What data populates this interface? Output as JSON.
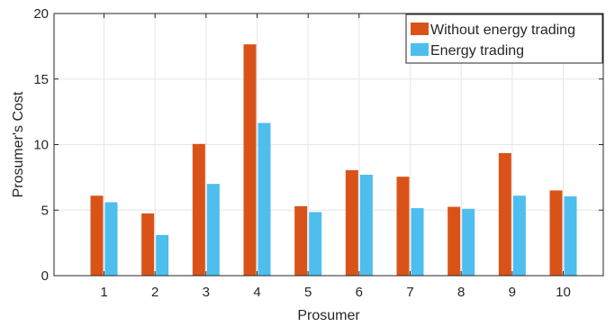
{
  "chart_data": {
    "type": "bar",
    "title": "",
    "xlabel": "Prosumer",
    "ylabel": "Prosumer's Cost",
    "categories": [
      "1",
      "2",
      "3",
      "4",
      "5",
      "6",
      "7",
      "8",
      "9",
      "10"
    ],
    "ylim": [
      0,
      20
    ],
    "yticks": [
      0,
      5,
      10,
      15,
      20
    ],
    "grid": true,
    "legend_position": "top-right",
    "series": [
      {
        "name": "Without energy trading",
        "color": "#D95319",
        "values": [
          6.1,
          4.75,
          10.05,
          17.65,
          5.3,
          8.05,
          7.55,
          5.25,
          9.35,
          6.5
        ]
      },
      {
        "name": "Energy trading",
        "color": "#4DBEEE",
        "values": [
          5.6,
          3.1,
          7.0,
          11.65,
          4.85,
          7.7,
          5.15,
          5.1,
          6.1,
          6.05
        ]
      }
    ]
  }
}
